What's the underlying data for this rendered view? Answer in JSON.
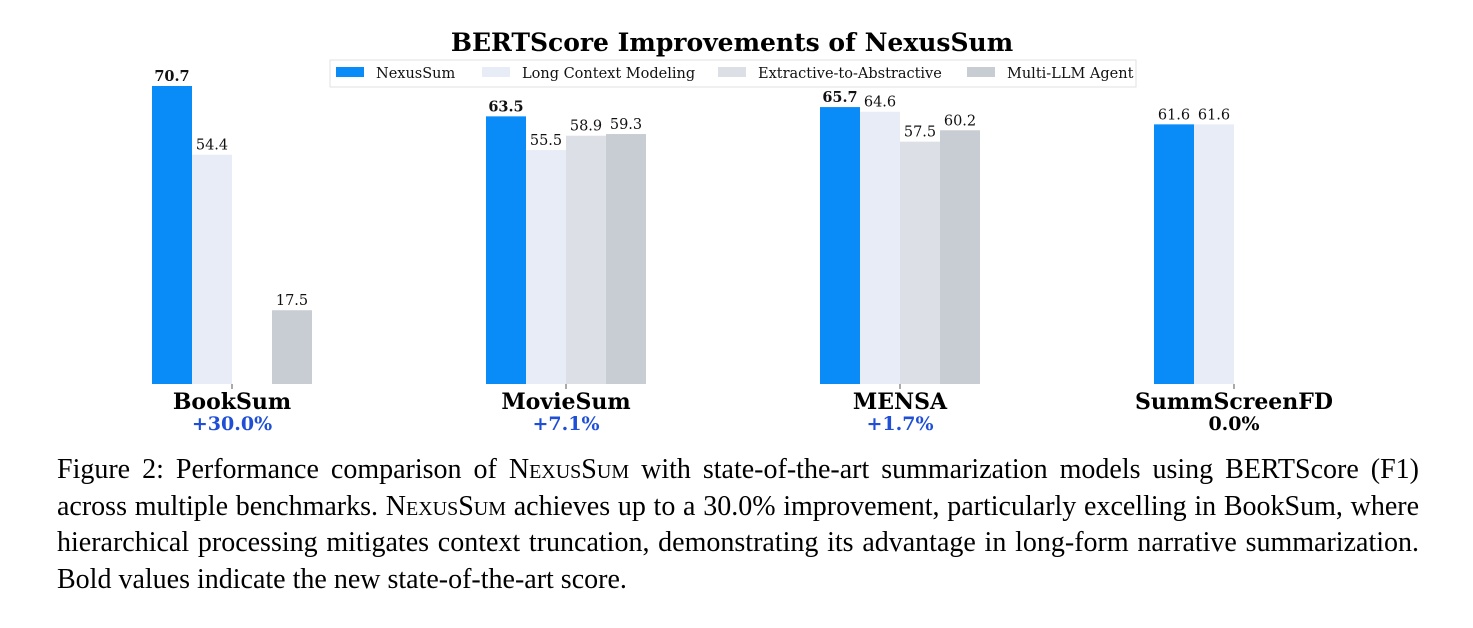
{
  "chart_data": {
    "type": "bar",
    "title": "BERTScore Improvements of NexusSum",
    "categories": [
      "BookSum",
      "MovieSum",
      "MENSA",
      "SummScreenFD"
    ],
    "improvements": [
      "+30.0%",
      "+7.1%",
      "+1.7%",
      "0.0%"
    ],
    "improvement_colors": [
      "#1f4fd6",
      "#1f4fd6",
      "#1f4fd6",
      "#000000"
    ],
    "series": [
      {
        "name": "NexusSum",
        "color": "#0a8cf8",
        "values": [
          70.7,
          63.5,
          65.7,
          61.6
        ],
        "labels": [
          "70.7",
          "63.5",
          "65.7",
          "61.6"
        ],
        "bold": [
          true,
          true,
          true,
          false
        ]
      },
      {
        "name": "Long Context Modeling",
        "color": "#e8ecf6",
        "values": [
          54.4,
          55.5,
          64.6,
          61.6
        ],
        "labels": [
          "54.4",
          "55.5",
          "64.6",
          "61.6"
        ],
        "bold": [
          false,
          false,
          false,
          false
        ]
      },
      {
        "name": "Extractive-to-Abstractive",
        "color": "#dcdfe6",
        "values": [
          null,
          58.9,
          57.5,
          null
        ],
        "labels": [
          "",
          "58.9",
          "57.5",
          ""
        ],
        "bold": [
          false,
          false,
          false,
          false
        ]
      },
      {
        "name": "Multi-LLM Agent",
        "color": "#c8ccd3",
        "values": [
          17.5,
          59.3,
          60.2,
          null
        ],
        "labels": [
          "17.5",
          "59.3",
          "60.2",
          ""
        ],
        "bold": [
          false,
          false,
          false,
          false
        ]
      }
    ],
    "ylim": [
      0,
      70.7
    ],
    "grid": false,
    "legend_position": "top-center",
    "xlabel": "",
    "ylabel": ""
  },
  "caption": {
    "prefix": "Figure 2: Performance comparison of ",
    "model_name": "NexusSum",
    "part2": " with state-of-the-art summarization models using BERTScore (F1) across multiple benchmarks. ",
    "part3": " achieves up to a 30.0% improvement, particularly excelling in BookSum, where hierarchical processing mitigates context truncation, demonstrating its advantage in long-form narrative summarization. Bold values indicate the new state-of-the-art score."
  }
}
